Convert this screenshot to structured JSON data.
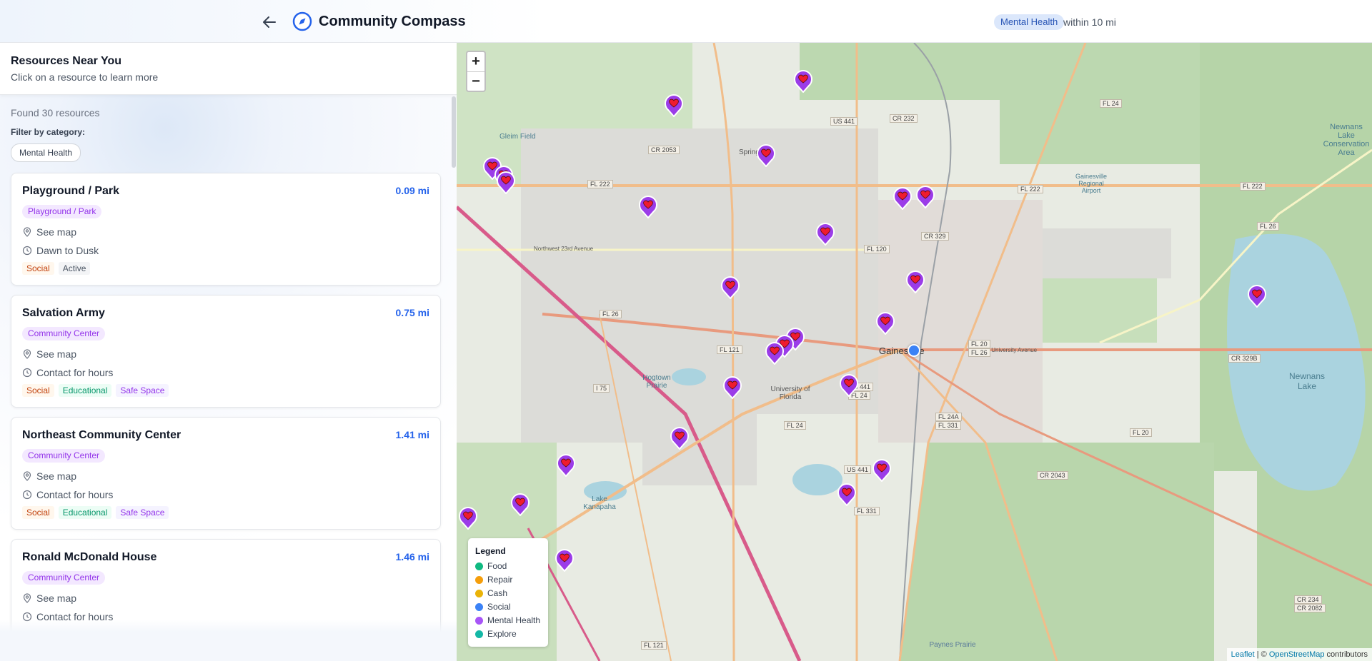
{
  "header": {
    "title": "Community Compass",
    "filter_chip": "Mental Health",
    "radius_text": "within 10 mi"
  },
  "sidebar": {
    "title": "Resources Near You",
    "subtitle": "Click on a resource to learn more",
    "found_text": "Found 30 resources",
    "filter_label": "Filter by category:",
    "category_chip": "Mental Health",
    "map_link_label": "See map",
    "cards": [
      {
        "name": "Playground / Park",
        "distance": "0.09 mi",
        "type": "Playground / Park",
        "hours": "Dawn to Dusk",
        "tags": [
          "Social",
          "Active"
        ]
      },
      {
        "name": "Salvation Army",
        "distance": "0.75 mi",
        "type": "Community Center",
        "hours": "Contact for hours",
        "tags": [
          "Social",
          "Educational",
          "Safe Space"
        ]
      },
      {
        "name": "Northeast Community Center",
        "distance": "1.41 mi",
        "type": "Community Center",
        "hours": "Contact for hours",
        "tags": [
          "Social",
          "Educational",
          "Safe Space"
        ]
      },
      {
        "name": "Ronald McDonald House",
        "distance": "1.46 mi",
        "type": "Community Center",
        "hours": "Contact for hours",
        "tags": []
      }
    ]
  },
  "map": {
    "zoom_in": "+",
    "zoom_out": "−",
    "legend": {
      "title": "Legend",
      "items": [
        {
          "label": "Food",
          "color": "#10b981"
        },
        {
          "label": "Repair",
          "color": "#f59e0b"
        },
        {
          "label": "Cash",
          "color": "#eab308"
        },
        {
          "label": "Social",
          "color": "#3b82f6"
        },
        {
          "label": "Mental Health",
          "color": "#a855f7"
        },
        {
          "label": "Explore",
          "color": "#14b8a6"
        }
      ]
    },
    "attribution": {
      "leaflet": "Leaflet",
      "sep": " | © ",
      "osm": "OpenStreetMap",
      "suffix": " contributors"
    },
    "labels": {
      "gainesville": "Gainesville",
      "newnans_lake": "Newnans Lake",
      "university": "University of Florida",
      "paynes_prairie": "Paynes Prairie",
      "gainesville_airport": "Gainesville Regional Airport",
      "springtree": "Springtree",
      "gleim": "Gleim Field",
      "lake_kanapaha": "Lake Kanapaha",
      "hogtown": "Hogtown Prairie",
      "nw23": "Northwest 23rd Avenue",
      "eua": "East University Avenue",
      "newnans_conserv": "Newnans Lake Conservation Area"
    },
    "roads": [
      "US 441",
      "CR 232",
      "FL 24",
      "FL 222",
      "CR 2053",
      "FL 222",
      "FL 222",
      "FL 26",
      "CR 329",
      "FL 120",
      "FL 26",
      "FL 121",
      "FL 20",
      "FL 26",
      "CR 329B",
      "I 75",
      "US 441",
      "FL 24",
      "FL 24A",
      "FL 331",
      "FL 24",
      "CR 2043",
      "US 441",
      "FL 331",
      "FL 20",
      "FL 121",
      "CR 234",
      "CR 2082"
    ],
    "markers_count": 30
  },
  "colors": {
    "accent": "#2563eb",
    "marker": "#9b3ce8",
    "heart": "#ef1b2e"
  }
}
